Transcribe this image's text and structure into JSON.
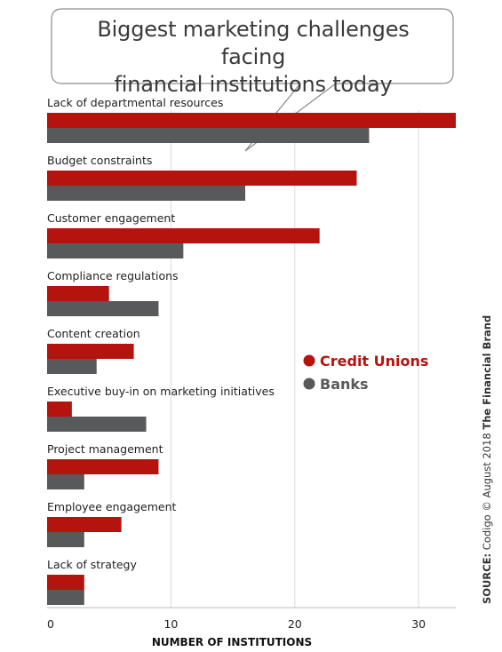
{
  "title": "Biggest marketing challenges facing financial institutions today",
  "title_lines": [
    "Biggest marketing challenges facing",
    "financial institutions today"
  ],
  "source": {
    "label": "SOURCE:",
    "text": "Codigo © August 2018",
    "brand": "The Financial Brand"
  },
  "colors": {
    "credit_unions": "#b5130e",
    "banks": "#58595b",
    "grid": "#d9d9d9",
    "text": "#222222"
  },
  "chart_data": {
    "type": "bar",
    "orientation": "horizontal",
    "categories": [
      "Lack of departmental resources",
      "Budget constraints",
      "Customer engagement",
      "Compliance regulations",
      "Content creation",
      "Executive buy-in on marketing initiatives",
      "Project management",
      "Employee engagement",
      "Lack of strategy"
    ],
    "series": [
      {
        "name": "Credit Unions",
        "color": "#b5130e",
        "values": [
          33,
          25,
          22,
          5,
          7,
          2,
          9,
          6,
          3
        ]
      },
      {
        "name": "Banks",
        "color": "#58595b",
        "values": [
          26,
          16,
          11,
          9,
          4,
          8,
          3,
          3,
          3
        ]
      }
    ],
    "xlabel": "NUMBER OF INSTITUTIONS",
    "ylabel": "",
    "xlim": [
      0,
      33
    ],
    "x_ticks": [
      0,
      10,
      20,
      30
    ],
    "grid": "vertical",
    "legend_position": "right-middle"
  }
}
